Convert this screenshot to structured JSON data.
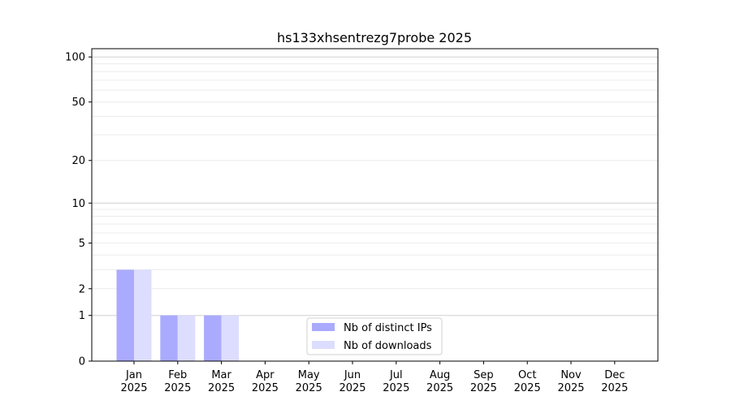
{
  "chart_data": {
    "type": "bar",
    "title": "hs133xhsentrezg7probe 2025",
    "xlabel": "",
    "ylabel": "",
    "y_scale": "symlog",
    "ylim": [
      0,
      114
    ],
    "y_ticks": [
      0,
      1,
      2,
      5,
      10,
      20,
      50,
      100
    ],
    "grid": "horizontal, major and minor",
    "legend_position": "bottom-center",
    "categories": [
      "Jan\n2025",
      "Feb\n2025",
      "Mar\n2025",
      "Apr\n2025",
      "May\n2025",
      "Jun\n2025",
      "Jul\n2025",
      "Aug\n2025",
      "Sep\n2025",
      "Oct\n2025",
      "Nov\n2025",
      "Dec\n2025"
    ],
    "series": [
      {
        "name": "Nb of distinct IPs",
        "color": "#aaaaff",
        "values": [
          3,
          1,
          1,
          0,
          0,
          0,
          0,
          0,
          0,
          0,
          0,
          0
        ]
      },
      {
        "name": "Nb of downloads",
        "color": "#ddddff",
        "values": [
          3,
          1,
          1,
          0,
          0,
          0,
          0,
          0,
          0,
          0,
          0,
          0
        ]
      }
    ]
  }
}
